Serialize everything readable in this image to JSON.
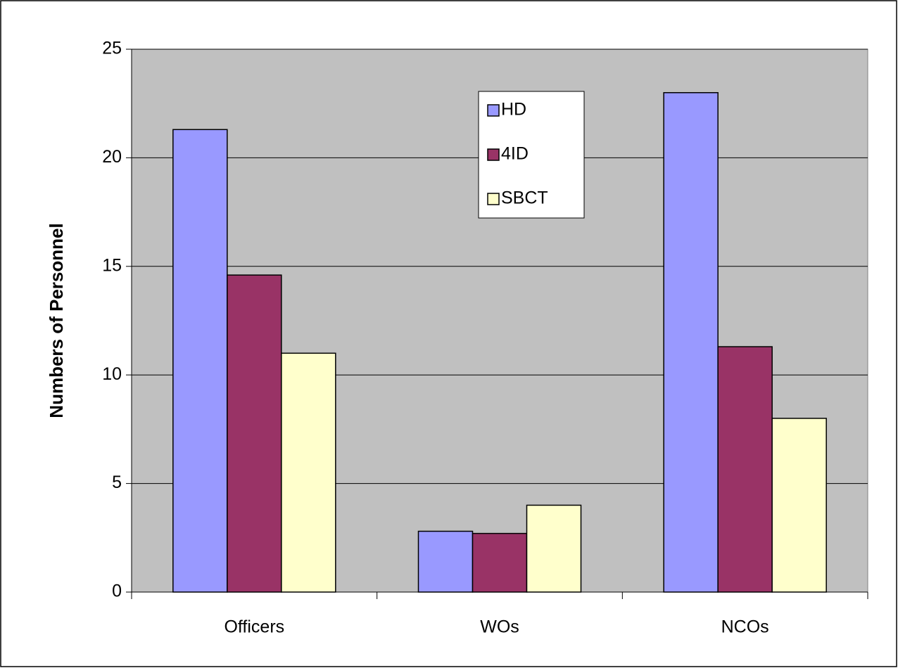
{
  "chart_data": {
    "type": "bar",
    "y_label": "Numbers of Personnel",
    "categories": [
      "Officers",
      "WOs",
      "NCOs"
    ],
    "series": [
      {
        "name": "HD",
        "color": "#9999ff",
        "values": [
          21.3,
          2.8,
          23
        ]
      },
      {
        "name": "4ID",
        "color": "#993366",
        "values": [
          14.6,
          2.7,
          11.3
        ]
      },
      {
        "name": "SBCT",
        "color": "#ffffcc",
        "values": [
          11,
          4,
          8
        ]
      }
    ],
    "ylim": [
      0,
      25
    ],
    "yticks": [
      0,
      5,
      10,
      15,
      20,
      25
    ],
    "grid": true,
    "legend": "top-center"
  }
}
